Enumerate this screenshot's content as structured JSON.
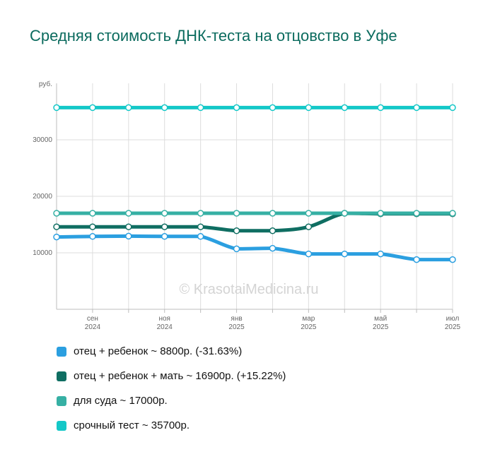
{
  "chart_data": {
    "type": "line",
    "title": "Средняя стоимость ДНК-теста на отцовство в Уфе",
    "ylabel": "руб.",
    "yticks": [
      10000,
      20000,
      30000
    ],
    "ylim": [
      0,
      40000
    ],
    "x": [
      "2024-08",
      "2024-09",
      "2024-10",
      "2024-11",
      "2024-12",
      "2025-01",
      "2025-02",
      "2025-03",
      "2025-04",
      "2025-05",
      "2025-06",
      "2025-07"
    ],
    "x_tick_labels": [
      {
        "index": 1,
        "month": "сен",
        "year": "2024"
      },
      {
        "index": 3,
        "month": "ноя",
        "year": "2024"
      },
      {
        "index": 5,
        "month": "янв",
        "year": "2025"
      },
      {
        "index": 7,
        "month": "мар",
        "year": "2025"
      },
      {
        "index": 9,
        "month": "май",
        "year": "2025"
      },
      {
        "index": 11,
        "month": "июл",
        "year": "2025"
      }
    ],
    "grid": true,
    "legend_position": "bottom",
    "watermark": "© KrasotaiMedicina.ru",
    "series": [
      {
        "name": "отец + ребенок",
        "legend_label": "отец + ребенок ~ 8800р. (-31.63%)",
        "color": "#2b9fe0",
        "values": [
          12800,
          12900,
          12950,
          12900,
          12900,
          10700,
          10800,
          9800,
          9800,
          9800,
          8800,
          8800
        ]
      },
      {
        "name": "отец + ребенок + мать",
        "legend_label": "отец + ребенок + мать ~ 16900р. (+15.22%)",
        "color": "#0f6e62",
        "values": [
          14600,
          14600,
          14600,
          14600,
          14600,
          13900,
          13900,
          14600,
          17000,
          16900,
          16900,
          16900
        ]
      },
      {
        "name": "для суда",
        "legend_label": "для суда ~ 17000р.",
        "color": "#36b0a4",
        "values": [
          17000,
          17000,
          17000,
          17000,
          17000,
          17000,
          17000,
          17000,
          17000,
          17000,
          17000,
          17000
        ]
      },
      {
        "name": "срочный тест",
        "legend_label": "срочный тест ~ 35700р.",
        "color": "#14c8c8",
        "values": [
          35700,
          35700,
          35700,
          35700,
          35700,
          35700,
          35700,
          35700,
          35700,
          35700,
          35700,
          35700
        ]
      }
    ]
  }
}
